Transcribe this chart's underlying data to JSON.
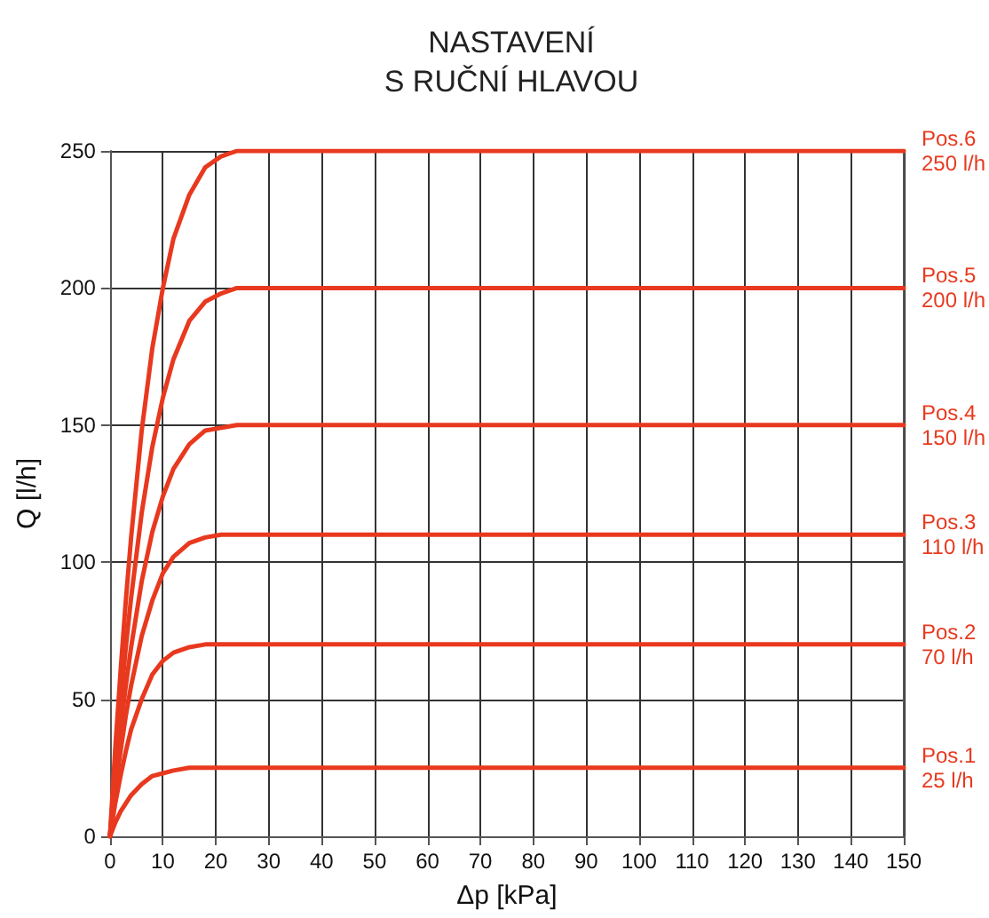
{
  "chart_data": {
    "type": "line",
    "title": "NASTAVENÍ\nS RUČNÍ HLAVOU",
    "xlabel": "Δp [kPa]",
    "ylabel": "Q [l/h]",
    "xlim": [
      0,
      150
    ],
    "xticks": [
      0,
      10,
      20,
      30,
      40,
      50,
      60,
      70,
      80,
      90,
      100,
      110,
      120,
      130,
      140,
      150
    ],
    "ylim": [
      0,
      250
    ],
    "yticks": [
      0,
      50,
      100,
      150,
      200,
      250
    ],
    "grid": true,
    "legend": false,
    "marker": "none",
    "line_style": "solid",
    "series": [
      {
        "name": "Pos.6",
        "color": "#e8391f",
        "x": [
          0,
          1,
          2,
          3,
          4,
          6,
          8,
          10,
          12,
          15,
          18,
          21,
          24,
          30,
          150
        ],
        "values": [
          0,
          32,
          60,
          86,
          109,
          148,
          178,
          200,
          218,
          234,
          244,
          248,
          250,
          250,
          250
        ]
      },
      {
        "name": "Pos.5",
        "color": "#e8391f",
        "x": [
          0,
          1,
          2,
          3,
          4,
          6,
          8,
          10,
          12,
          15,
          18,
          21,
          24,
          30,
          150
        ],
        "values": [
          0,
          25,
          48,
          69,
          87,
          118,
          142,
          160,
          174,
          188,
          195,
          198,
          200,
          200,
          200
        ]
      },
      {
        "name": "Pos.4",
        "color": "#e8391f",
        "x": [
          0,
          1,
          2,
          3,
          4,
          6,
          8,
          10,
          12,
          15,
          18,
          21,
          24,
          28,
          150
        ],
        "values": [
          0,
          20,
          39,
          55,
          69,
          93,
          111,
          124,
          134,
          143,
          148,
          149,
          150,
          150,
          150
        ]
      },
      {
        "name": "Pos.3",
        "color": "#e8391f",
        "x": [
          0,
          1,
          2,
          3,
          4,
          6,
          8,
          10,
          12,
          15,
          18,
          21,
          25,
          150
        ],
        "values": [
          0,
          17,
          31,
          44,
          55,
          73,
          86,
          96,
          102,
          107,
          109,
          110,
          110,
          110
        ]
      },
      {
        "name": "Pos.2",
        "color": "#e8391f",
        "x": [
          0,
          1,
          2,
          3,
          4,
          6,
          8,
          10,
          12,
          15,
          18,
          22,
          150
        ],
        "values": [
          0,
          12,
          22,
          31,
          39,
          50,
          59,
          64,
          67,
          69,
          70,
          70,
          70
        ]
      },
      {
        "name": "Pos.1",
        "color": "#e8391f",
        "x": [
          0,
          1,
          2,
          3,
          4,
          6,
          8,
          10,
          12,
          15,
          20,
          150
        ],
        "values": [
          0,
          5,
          9,
          12,
          15,
          19,
          22,
          23,
          24,
          25,
          25,
          25
        ]
      }
    ],
    "annotations": [
      "250 l/h",
      "200 l/h",
      "150 l/h",
      "110 l/h",
      "70 l/h",
      "25 l/h"
    ]
  }
}
